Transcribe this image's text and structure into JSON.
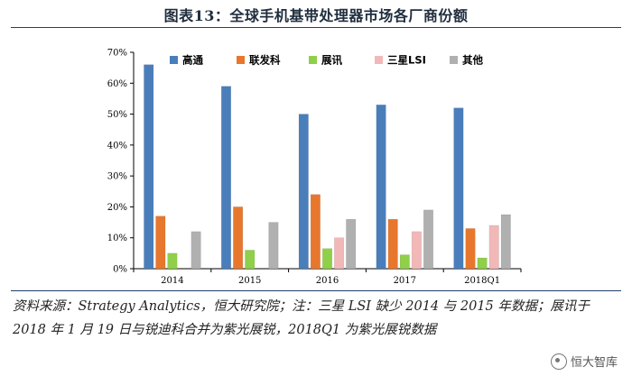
{
  "chart_data": {
    "type": "bar",
    "title": "图表13：全球手机基带处理器市场各厂商份额",
    "categories": [
      "2014",
      "2015",
      "2016",
      "2017",
      "2018Q1"
    ],
    "ylim": [
      0,
      70
    ],
    "yticks": [
      "0%",
      "10%",
      "20%",
      "30%",
      "40%",
      "50%",
      "60%",
      "70%"
    ],
    "ytick_values": [
      0,
      10,
      20,
      30,
      40,
      50,
      60,
      70
    ],
    "unit": "%",
    "legend_position": "top",
    "grid": false,
    "series": [
      {
        "name": "高通",
        "color": "#4a7ebb",
        "values": [
          66,
          59,
          50,
          53,
          52
        ]
      },
      {
        "name": "联发科",
        "color": "#e8772e",
        "values": [
          17,
          20,
          24,
          16,
          13
        ]
      },
      {
        "name": "展讯",
        "color": "#8fcf4a",
        "values": [
          5,
          6,
          6.5,
          4.5,
          3.5
        ]
      },
      {
        "name": "三星LSI",
        "color": "#f2b8b8",
        "values": [
          0,
          0,
          10,
          12,
          14
        ]
      },
      {
        "name": "其他",
        "color": "#b0b0b0",
        "values": [
          12,
          15,
          16,
          19,
          17.5
        ]
      }
    ]
  },
  "header": {
    "title": "图表13：全球手机基带处理器市场各厂商份额"
  },
  "footnote": {
    "text": "资料来源：Strategy Analytics，恒大研究院；注：三星 LSI 缺少 2014 与 2015 年数据；展讯于 2018 年 1 月 19 日与锐迪科合并为紫光展锐，2018Q1 为紫光展锐数据"
  },
  "watermark": {
    "text": "恒大智库"
  }
}
